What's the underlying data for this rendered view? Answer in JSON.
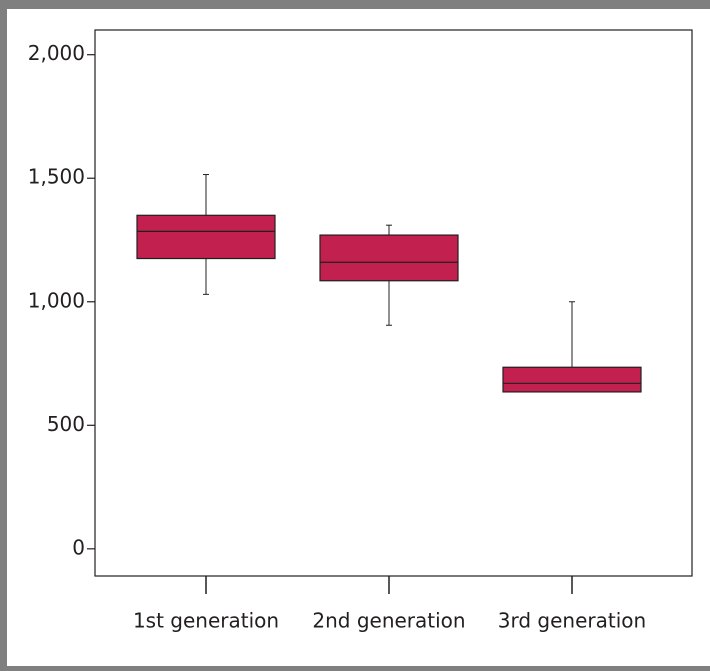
{
  "chart_data": {
    "type": "box",
    "categories": [
      "1st generation",
      "2nd generation",
      "3rd generation"
    ],
    "boxes": [
      {
        "min": 1030,
        "q1": 1175,
        "median": 1285,
        "q3": 1350,
        "max": 1515
      },
      {
        "min": 905,
        "q1": 1085,
        "median": 1160,
        "q3": 1270,
        "max": 1310
      },
      {
        "min": 635,
        "q1": 635,
        "median": 670,
        "q3": 735,
        "max": 1000
      }
    ],
    "color": "#c2214f",
    "ylim": [
      -110,
      2100
    ],
    "yticks": [
      0,
      {
        "value": 500,
        "label": "500"
      },
      {
        "value": 1000,
        "label": "1,000"
      },
      {
        "value": 1500,
        "label": "1,500"
      },
      {
        "value": 2000,
        "label": "2,000"
      }
    ]
  }
}
